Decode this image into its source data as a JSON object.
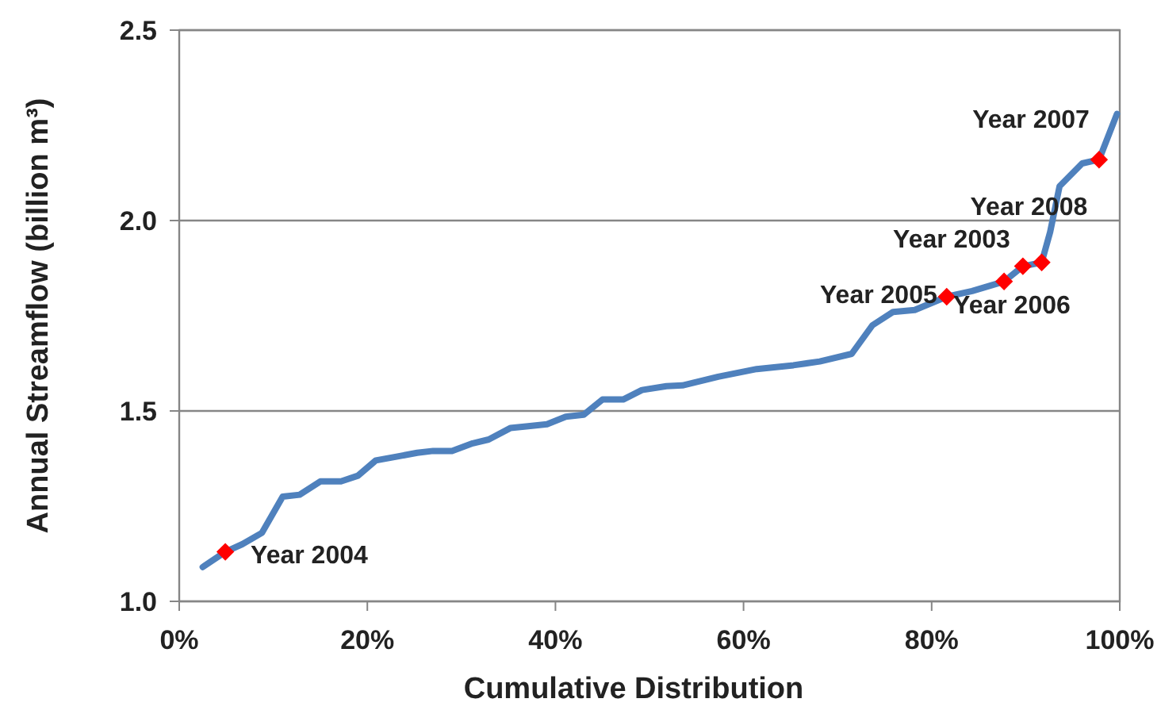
{
  "chart_data": {
    "type": "line",
    "xlabel": "Cumulative Distribution",
    "ylabel": "Annual Streamflow (billion m³)",
    "xlim": [
      0,
      100
    ],
    "xticks": [
      {
        "value": 0,
        "label": "0%"
      },
      {
        "value": 20,
        "label": "20%"
      },
      {
        "value": 40,
        "label": "40%"
      },
      {
        "value": 60,
        "label": "60%"
      },
      {
        "value": 80,
        "label": "80%"
      },
      {
        "value": 100,
        "label": "100%"
      }
    ],
    "ylim": [
      1.0,
      2.5
    ],
    "yticks": [
      {
        "value": 1.0,
        "label": "1.0"
      },
      {
        "value": 1.5,
        "label": "1.5"
      },
      {
        "value": 2.0,
        "label": "2.0"
      },
      {
        "value": 2.5,
        "label": "2.5"
      }
    ],
    "grid": "y",
    "series": [
      {
        "color": "#4f81bd",
        "marker": "none",
        "x": [
          2.5,
          4.9,
          6.7,
          8.8,
          11,
          12.8,
          15,
          17.2,
          19,
          20.9,
          23.1,
          25.3,
          27,
          29,
          31.2,
          32.9,
          35.2,
          37.1,
          39.1,
          41.1,
          43,
          45,
          47.2,
          49.2,
          51.8,
          53.5,
          57.3,
          61.4,
          65.3,
          68.1,
          71.5,
          73.7,
          75.9,
          78.2,
          81.6,
          84.3,
          87.7,
          89.7,
          91.7,
          92.6,
          93.6,
          96,
          97.8,
          99.7
        ],
        "values": [
          1.09,
          1.13,
          1.15,
          1.18,
          1.275,
          1.28,
          1.315,
          1.315,
          1.33,
          1.37,
          1.38,
          1.39,
          1.395,
          1.395,
          1.415,
          1.425,
          1.455,
          1.46,
          1.465,
          1.485,
          1.49,
          1.53,
          1.53,
          1.555,
          1.565,
          1.567,
          1.59,
          1.61,
          1.62,
          1.63,
          1.65,
          1.725,
          1.76,
          1.765,
          1.8,
          1.815,
          1.84,
          1.88,
          1.89,
          1.97,
          2.09,
          2.15,
          2.16,
          2.28
        ]
      },
      {
        "type": "scatter",
        "color": "#ff0000",
        "marker": "diamond",
        "x": [
          4.9,
          81.6,
          87.7,
          89.7,
          91.7,
          97.8
        ],
        "values": [
          1.13,
          1.8,
          1.84,
          1.88,
          1.89,
          2.16
        ]
      }
    ],
    "annotations": [
      {
        "text": "Year 2004",
        "x": 4.9,
        "y": 1.13
      },
      {
        "text": "Year 2005",
        "x": 81.6,
        "y": 1.8
      },
      {
        "text": "Year 2006",
        "x": 87.7,
        "y": 1.84
      },
      {
        "text": "Year 2003",
        "x": 89.7,
        "y": 1.88
      },
      {
        "text": "Year 2008",
        "x": 91.7,
        "y": 1.89
      },
      {
        "text": "Year 2007",
        "x": 97.8,
        "y": 2.16
      }
    ]
  }
}
